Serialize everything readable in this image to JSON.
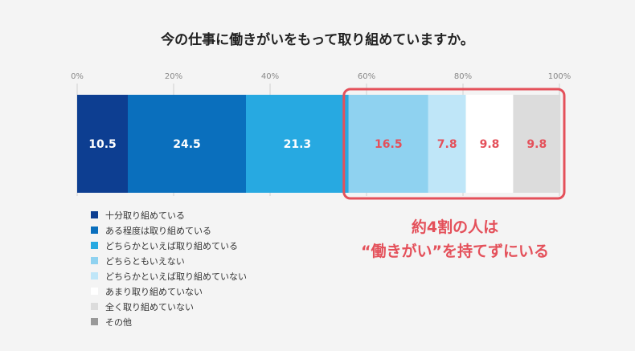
{
  "chart_data": {
    "type": "bar",
    "orientation": "horizontal-stacked-100",
    "title": "今の仕事に働きがいをもって取り組めていますか。",
    "xlim": [
      0,
      100
    ],
    "ticks": [
      "0%",
      "20%",
      "40%",
      "60%",
      "80%",
      "100%"
    ],
    "tick_values": [
      0,
      20,
      40,
      60,
      80,
      100
    ],
    "grid": true,
    "series": [
      {
        "name": "十分取り組めている",
        "value": 10.5,
        "color": "#0d3e91",
        "label": "10.5",
        "label_color": "#ffffff"
      },
      {
        "name": "ある程度は取り組めている",
        "value": 24.5,
        "color": "#0a6fbd",
        "label": "24.5",
        "label_color": "#ffffff"
      },
      {
        "name": "どちらかといえば取り組めている",
        "value": 21.3,
        "color": "#27a9e1",
        "label": "21.3",
        "label_color": "#ffffff"
      },
      {
        "name": "どちらともいえない",
        "value": 16.5,
        "color": "#8fd2f0",
        "label": "16.5",
        "label_color": "#e4505a"
      },
      {
        "name": "どちらかといえば取り組めていない",
        "value": 7.8,
        "color": "#bfe6f8",
        "label": "7.8",
        "label_color": "#e4505a"
      },
      {
        "name": "あまり取り組めていない",
        "value": 9.8,
        "color": "#ffffff",
        "label": "9.8",
        "label_color": "#e4505a"
      },
      {
        "name": "全く取り組めていない",
        "value": 9.8,
        "color": "#dcdcdc",
        "label": "9.8",
        "label_color": "#e4505a"
      },
      {
        "name": "その他",
        "value": 0,
        "color": "#999999",
        "label": "",
        "label_color": "#e4505a"
      }
    ],
    "legend_position": "bottom-left",
    "highlight": {
      "from_series_index": 3,
      "color": "#e4505a",
      "callout_lines": [
        "約4割の人は",
        "“働きがい”を持てずにいる"
      ]
    }
  }
}
